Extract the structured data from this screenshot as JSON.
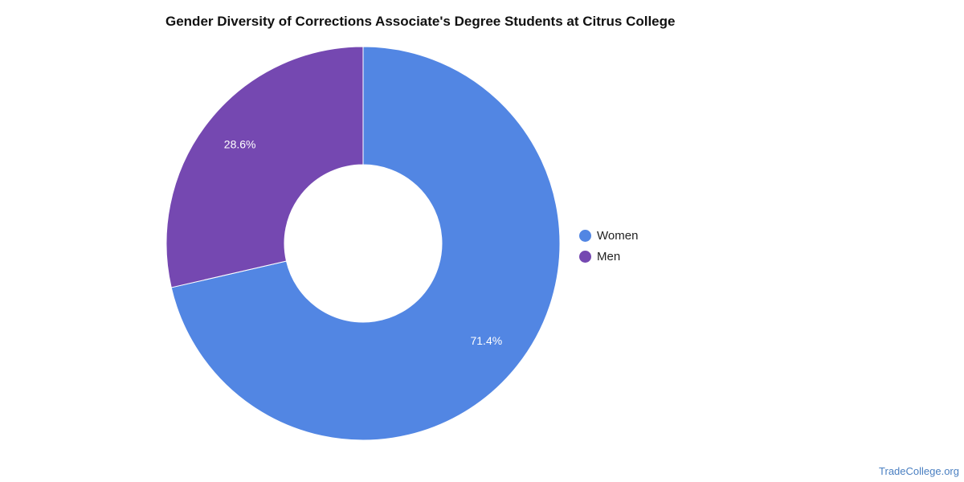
{
  "chart_data": {
    "type": "pie",
    "title": "Gender Diversity of Corrections Associate's Degree Students at Citrus College",
    "categories": [
      "Women",
      "Men"
    ],
    "values": [
      71.4,
      28.6
    ],
    "value_labels": [
      "71.4%",
      "28.6%"
    ],
    "colors": [
      "#5286e3",
      "#7548b1"
    ],
    "donut": true,
    "legend_position": "right"
  },
  "source": "TradeCollege.org"
}
